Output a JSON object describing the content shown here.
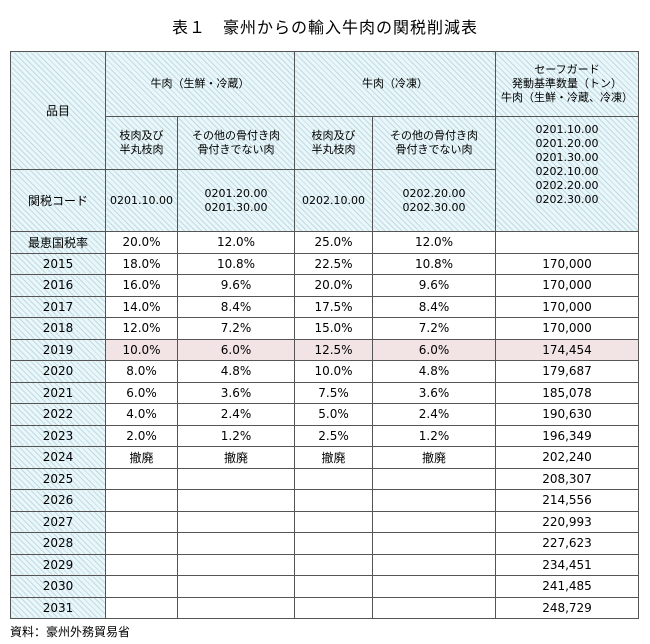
{
  "title": "表１　豪州からの輸入牛肉の関税削減表",
  "header": {
    "item": "品目",
    "chilled": "牛肉（生鮮・冷蔵）",
    "frozen": "牛肉（冷凍）",
    "safeguard": [
      "セーフガード",
      "発動基準数量（トン）",
      "牛肉（生鮮・冷蔵、冷凍）"
    ],
    "sub_cut": [
      "枝肉及び",
      "半丸枝肉"
    ],
    "sub_other": [
      "その他の骨付き肉",
      "骨付きでない肉"
    ],
    "tariff_code_label": "関税コード",
    "codes": {
      "chilled_cut": "0201.10.00",
      "chilled_other": [
        "0201.20.00",
        "0201.30.00"
      ],
      "frozen_cut": "0202.10.00",
      "frozen_other": [
        "0202.20.00",
        "0202.30.00"
      ],
      "safeguard": [
        "0201.10.00",
        "0201.20.00",
        "0201.30.00",
        "0202.10.00",
        "0202.20.00",
        "0202.30.00"
      ]
    }
  },
  "rows": [
    {
      "year": "最恵国税率",
      "c1": "20.0%",
      "c2": "12.0%",
      "c3": "25.0%",
      "c4": "12.0%",
      "sg": ""
    },
    {
      "year": "2015",
      "c1": "18.0%",
      "c2": "10.8%",
      "c3": "22.5%",
      "c4": "10.8%",
      "sg": "170,000"
    },
    {
      "year": "2016",
      "c1": "16.0%",
      "c2": "9.6%",
      "c3": "20.0%",
      "c4": "9.6%",
      "sg": "170,000"
    },
    {
      "year": "2017",
      "c1": "14.0%",
      "c2": "8.4%",
      "c3": "17.5%",
      "c4": "8.4%",
      "sg": "170,000"
    },
    {
      "year": "2018",
      "c1": "12.0%",
      "c2": "7.2%",
      "c3": "15.0%",
      "c4": "7.2%",
      "sg": "170,000"
    },
    {
      "year": "2019",
      "c1": "10.0%",
      "c2": "6.0%",
      "c3": "12.5%",
      "c4": "6.0%",
      "sg": "174,454"
    },
    {
      "year": "2020",
      "c1": "8.0%",
      "c2": "4.8%",
      "c3": "10.0%",
      "c4": "4.8%",
      "sg": "179,687"
    },
    {
      "year": "2021",
      "c1": "6.0%",
      "c2": "3.6%",
      "c3": "7.5%",
      "c4": "3.6%",
      "sg": "185,078"
    },
    {
      "year": "2022",
      "c1": "4.0%",
      "c2": "2.4%",
      "c3": "5.0%",
      "c4": "2.4%",
      "sg": "190,630"
    },
    {
      "year": "2023",
      "c1": "2.0%",
      "c2": "1.2%",
      "c3": "2.5%",
      "c4": "1.2%",
      "sg": "196,349"
    },
    {
      "year": "2024",
      "c1": "撤廃",
      "c2": "撤廃",
      "c3": "撤廃",
      "c4": "撤廃",
      "sg": "202,240"
    },
    {
      "year": "2025",
      "c1": "",
      "c2": "",
      "c3": "",
      "c4": "",
      "sg": "208,307"
    },
    {
      "year": "2026",
      "c1": "",
      "c2": "",
      "c3": "",
      "c4": "",
      "sg": "214,556"
    },
    {
      "year": "2027",
      "c1": "",
      "c2": "",
      "c3": "",
      "c4": "",
      "sg": "220,993"
    },
    {
      "year": "2028",
      "c1": "",
      "c2": "",
      "c3": "",
      "c4": "",
      "sg": "227,623"
    },
    {
      "year": "2029",
      "c1": "",
      "c2": "",
      "c3": "",
      "c4": "",
      "sg": "234,451"
    },
    {
      "year": "2030",
      "c1": "",
      "c2": "",
      "c3": "",
      "c4": "",
      "sg": "241,485"
    },
    {
      "year": "2031",
      "c1": "",
      "c2": "",
      "c3": "",
      "c4": "",
      "sg": "248,729"
    }
  ],
  "highlight_row_year": "2019",
  "source": "資料：豪州外務貿易省",
  "colors": {
    "header_bg": "#e9f7fa",
    "highlight_row": "#f2e4e4",
    "border": "#555555"
  }
}
